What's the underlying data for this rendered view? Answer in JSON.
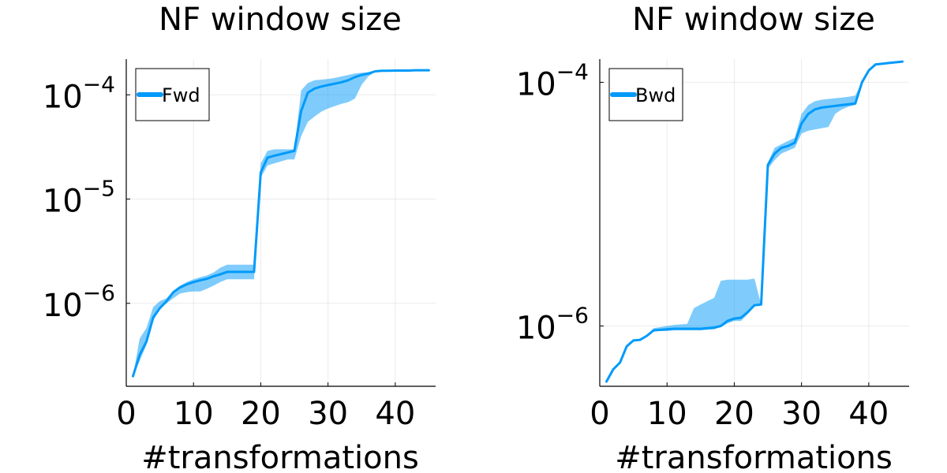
{
  "chart_data": [
    {
      "type": "line",
      "title": "NF window size",
      "xlabel": "#transformations",
      "ylabel": "",
      "yscale": "log",
      "xlim": [
        0,
        46
      ],
      "ylim": [
        1.6e-07,
        0.00022
      ],
      "xticks": [
        0,
        10,
        20,
        30,
        40
      ],
      "yticks": [
        {
          "value": 1e-06,
          "base": "10",
          "exp": "−6"
        },
        {
          "value": 1e-05,
          "base": "10",
          "exp": "−5"
        },
        {
          "value": 0.0001,
          "base": "10",
          "exp": "−4"
        }
      ],
      "grid": true,
      "legend_position": "top-left",
      "series": [
        {
          "name": "Fwd",
          "color": "#009AFA",
          "x": [
            1,
            2,
            3,
            4,
            5,
            6,
            7,
            8,
            9,
            10,
            11,
            12,
            13,
            14,
            15,
            16,
            17,
            18,
            19,
            20,
            21,
            22,
            23,
            24,
            25,
            26,
            27,
            28,
            29,
            30,
            31,
            32,
            33,
            34,
            35,
            36,
            37,
            38,
            39,
            40,
            41,
            42,
            43,
            44,
            45
          ],
          "y": [
            2e-07,
            3.2e-07,
            4.3e-07,
            7.3e-07,
            9e-07,
            1.05e-06,
            1.28e-06,
            1.42e-06,
            1.52e-06,
            1.6e-06,
            1.66e-06,
            1.72e-06,
            1.82e-06,
            1.9e-06,
            2e-06,
            2e-06,
            2e-06,
            2e-06,
            2e-06,
            1.8e-05,
            2.5e-05,
            2.6e-05,
            2.7e-05,
            2.8e-05,
            2.9e-05,
            7e-05,
            0.000105,
            0.000115,
            0.00012,
            0.000124,
            0.000128,
            0.000132,
            0.000138,
            0.000148,
            0.000155,
            0.00016,
            0.000168,
            0.00017,
            0.00017,
            0.000171,
            0.000171,
            0.000171,
            0.000172,
            0.000172,
            0.000172
          ],
          "lower": [
            2e-07,
            2.8e-07,
            4e-07,
            6.8e-07,
            8.8e-07,
            1e-06,
            1.12e-06,
            1.24e-06,
            1.28e-06,
            1.3e-06,
            1.3e-06,
            1.38e-06,
            1.48e-06,
            1.6e-06,
            1.7e-06,
            1.7e-06,
            1.7e-06,
            1.7e-06,
            1.7e-06,
            1.6e-05,
            2.1e-05,
            2.2e-05,
            2.3e-05,
            2.4e-05,
            2.4e-05,
            4e-05,
            5.5e-05,
            6.2e-05,
            6.9e-05,
            7.4e-05,
            7.8e-05,
            8.2e-05,
            8.5e-05,
            9.2e-05,
            0.000125,
            0.00015,
            0.000166,
            0.00017,
            0.00017,
            0.000171,
            0.000171,
            0.000171,
            0.000172,
            0.000172,
            0.000172
          ],
          "upper": [
            2e-07,
            4.6e-07,
            5.8e-07,
            9.2e-07,
            1.05e-06,
            1.12e-06,
            1.32e-06,
            1.48e-06,
            1.6e-06,
            1.7e-06,
            1.78e-06,
            1.85e-06,
            1.98e-06,
            2.2e-06,
            2.35e-06,
            2.35e-06,
            2.35e-06,
            2.35e-06,
            2.35e-06,
            2.2e-05,
            2.9e-05,
            3e-05,
            3e-05,
            3e-05,
            3e-05,
            0.00011,
            0.00013,
            0.000138,
            0.00014,
            0.000142,
            0.000145,
            0.00015,
            0.000155,
            0.00016,
            0.000163,
            0.000165,
            0.00017,
            0.00017,
            0.000171,
            0.000171,
            0.000171,
            0.000172,
            0.000172,
            0.000172,
            0.000172
          ]
        }
      ]
    },
    {
      "type": "line",
      "title": "NF window size",
      "xlabel": "#transformations",
      "ylabel": "",
      "yscale": "log",
      "xlim": [
        0,
        46
      ],
      "ylim": [
        3.2e-07,
        0.000155
      ],
      "xticks": [
        0,
        10,
        20,
        30,
        40
      ],
      "yticks": [
        {
          "value": 1e-06,
          "base": "10",
          "exp": "−6"
        },
        {
          "value": 0.0001,
          "base": "10",
          "exp": "−4"
        }
      ],
      "grid": true,
      "legend_position": "top-left",
      "series": [
        {
          "name": "Bwd",
          "color": "#009AFA",
          "x": [
            1,
            2,
            3,
            4,
            5,
            6,
            7,
            8,
            9,
            10,
            11,
            12,
            13,
            14,
            15,
            16,
            17,
            18,
            19,
            20,
            21,
            22,
            23,
            24,
            25,
            26,
            27,
            28,
            29,
            30,
            31,
            32,
            33,
            34,
            35,
            36,
            37,
            38,
            39,
            40,
            41,
            42,
            43,
            44,
            45
          ],
          "y": [
            3.5e-07,
            4.4e-07,
            5e-07,
            6.8e-07,
            7.6e-07,
            7.7e-07,
            8.3e-07,
            9.2e-07,
            9.3e-07,
            9.4e-07,
            9.5e-07,
            9.5e-07,
            9.5e-07,
            9.5e-07,
            9.5e-07,
            9.6e-07,
            9.7e-07,
            1e-06,
            1.1e-06,
            1.15e-06,
            1.17e-06,
            1.3e-06,
            1.48e-06,
            1.5e-06,
            2.1e-05,
            2.6e-05,
            2.9e-05,
            3e-05,
            3.2e-05,
            4.6e-05,
            5.5e-05,
            6e-05,
            6.2e-05,
            6.3e-05,
            6.4e-05,
            6.5e-05,
            6.6e-05,
            6.7e-05,
            0.0001,
            0.000125,
            0.00014,
            0.000142,
            0.000144,
            0.000146,
            0.000148
          ],
          "lower": [
            3.5e-07,
            4.4e-07,
            5e-07,
            6.8e-07,
            7.6e-07,
            7.7e-07,
            8.3e-07,
            9.2e-07,
            9.1e-07,
            9.1e-07,
            9.2e-07,
            9.2e-07,
            9.2e-07,
            9.2e-07,
            9.2e-07,
            9.3e-07,
            9.4e-07,
            9.8e-07,
            1.05e-06,
            1.1e-06,
            1.1e-06,
            1.25e-06,
            1.45e-06,
            1.5e-06,
            1.95e-05,
            2.3e-05,
            2.6e-05,
            2.75e-05,
            2.9e-05,
            3.8e-05,
            4e-05,
            4.1e-05,
            4.2e-05,
            4.3e-05,
            5.5e-05,
            6e-05,
            6.3e-05,
            6.5e-05,
            0.0001,
            0.000125,
            0.00014,
            0.000142,
            0.000144,
            0.000146,
            0.000148
          ],
          "upper": [
            3.5e-07,
            4.4e-07,
            5e-07,
            6.8e-07,
            7.6e-07,
            7.7e-07,
            8.3e-07,
            9.6e-07,
            9.8e-07,
            1e-06,
            1.02e-06,
            1.03e-06,
            1.04e-06,
            1.4e-06,
            1.5e-06,
            1.6e-06,
            1.7e-06,
            2.35e-06,
            2.4e-06,
            2.4e-06,
            2.4e-06,
            2.4e-06,
            2.45e-06,
            1.5e-06,
            2.2e-05,
            2.9e-05,
            3.1e-05,
            3.3e-05,
            3.5e-05,
            5.5e-05,
            6.5e-05,
            7e-05,
            7.2e-05,
            7.3e-05,
            7.4e-05,
            7.5e-05,
            7.6e-05,
            7.8e-05,
            0.0001,
            0.000125,
            0.00014,
            0.000142,
            0.000144,
            0.000146,
            0.000148
          ]
        }
      ]
    }
  ]
}
